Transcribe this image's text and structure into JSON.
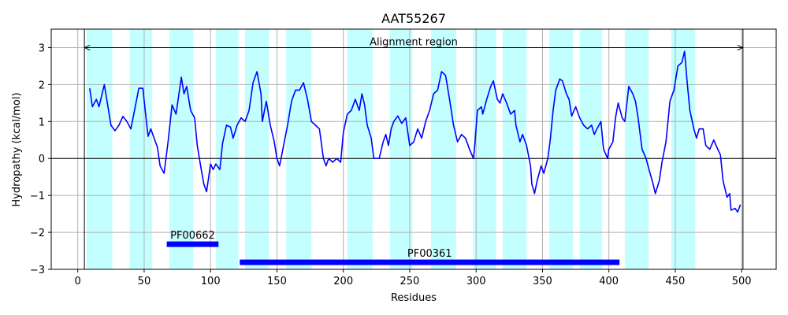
{
  "chart_data": {
    "type": "line",
    "title": "AAT55267",
    "x_label": "Residues",
    "y_label": "Hydropathy (kcal/mol)",
    "x": [
      9,
      11,
      14,
      16,
      20,
      25,
      28,
      31,
      34,
      37,
      40,
      46,
      49,
      52,
      53,
      55,
      58,
      60,
      62,
      65,
      68,
      71,
      74,
      78,
      80,
      82,
      85,
      88,
      90,
      93,
      95,
      97,
      100,
      102,
      104,
      107,
      109,
      112,
      115,
      117,
      120,
      123,
      126,
      129,
      132,
      135,
      138,
      139,
      142,
      145,
      148,
      150,
      152,
      155,
      158,
      161,
      164,
      167,
      170,
      173,
      176,
      179,
      182,
      185,
      187,
      189,
      192,
      195,
      198,
      200,
      203,
      206,
      209,
      212,
      214,
      216,
      218,
      221,
      223,
      225,
      227,
      230,
      232,
      234,
      236,
      238,
      241,
      244,
      247,
      250,
      253,
      256,
      259,
      262,
      265,
      268,
      271,
      274,
      277,
      280,
      283,
      286,
      289,
      292,
      295,
      298,
      299,
      301,
      304,
      305,
      308,
      311,
      313,
      316,
      318,
      320,
      323,
      326,
      329,
      330,
      333,
      335,
      338,
      341,
      342,
      344,
      346,
      349,
      351,
      354,
      356,
      358,
      360,
      363,
      365,
      368,
      370,
      372,
      375,
      378,
      381,
      384,
      387,
      389,
      391,
      394,
      396,
      399,
      400,
      403,
      405,
      407,
      410,
      412,
      415,
      418,
      420,
      422,
      425,
      428,
      431,
      433,
      435,
      438,
      440,
      443,
      446,
      449,
      452,
      455,
      457,
      459,
      461,
      464,
      466,
      468,
      471,
      473,
      476,
      479,
      482,
      484,
      486,
      489,
      491,
      492,
      495,
      497,
      499
    ],
    "values": [
      1.9,
      1.4,
      1.6,
      1.4,
      2.0,
      0.9,
      0.75,
      0.9,
      1.14,
      1.0,
      0.8,
      1.9,
      1.9,
      0.9,
      0.6,
      0.8,
      0.5,
      0.3,
      -0.2,
      -0.4,
      0.45,
      1.45,
      1.2,
      2.2,
      1.75,
      1.95,
      1.3,
      1.1,
      0.35,
      -0.3,
      -0.7,
      -0.9,
      -0.15,
      -0.3,
      -0.15,
      -0.3,
      0.4,
      0.9,
      0.85,
      0.55,
      0.9,
      1.1,
      1.0,
      1.3,
      2.05,
      2.35,
      1.75,
      1.0,
      1.55,
      0.9,
      0.45,
      0.0,
      -0.2,
      0.35,
      0.9,
      1.55,
      1.85,
      1.85,
      2.05,
      1.6,
      1.0,
      0.9,
      0.8,
      0.0,
      -0.2,
      0.0,
      -0.1,
      0.0,
      -0.1,
      0.7,
      1.2,
      1.3,
      1.6,
      1.3,
      1.75,
      1.45,
      0.9,
      0.55,
      0.0,
      0.0,
      0.0,
      0.45,
      0.65,
      0.35,
      0.8,
      1.0,
      1.15,
      0.95,
      1.1,
      0.35,
      0.45,
      0.8,
      0.55,
      1.0,
      1.3,
      1.75,
      1.85,
      2.35,
      2.25,
      1.6,
      0.9,
      0.45,
      0.65,
      0.55,
      0.25,
      0.0,
      0.35,
      1.3,
      1.4,
      1.2,
      1.6,
      1.95,
      2.1,
      1.6,
      1.5,
      1.75,
      1.5,
      1.2,
      1.3,
      0.9,
      0.45,
      0.65,
      0.35,
      -0.2,
      -0.7,
      -0.95,
      -0.6,
      -0.2,
      -0.4,
      0.0,
      0.55,
      1.3,
      1.85,
      2.15,
      2.1,
      1.75,
      1.6,
      1.15,
      1.4,
      1.1,
      0.9,
      0.8,
      0.9,
      0.65,
      0.8,
      1.0,
      0.25,
      0.0,
      0.25,
      0.45,
      1.1,
      1.5,
      1.1,
      1.0,
      1.95,
      1.75,
      1.55,
      1.1,
      0.25,
      0.0,
      -0.4,
      -0.65,
      -0.95,
      -0.6,
      -0.1,
      0.45,
      1.55,
      1.85,
      2.5,
      2.6,
      2.9,
      2.05,
      1.3,
      0.8,
      0.55,
      0.8,
      0.8,
      0.35,
      0.25,
      0.5,
      0.25,
      0.1,
      -0.6,
      -1.05,
      -0.95,
      -1.4,
      -1.35,
      -1.45,
      -1.25
    ],
    "color": "#0000ff",
    "xlim": [
      -20,
      526
    ],
    "ylim": [
      -3,
      3.5
    ],
    "xticks": [
      0,
      50,
      100,
      150,
      200,
      250,
      300,
      350,
      400,
      450,
      500
    ],
    "yticks": [
      {
        "value": -3,
        "label": "−3"
      },
      {
        "value": -2,
        "label": "−2"
      },
      {
        "value": -1,
        "label": "−1"
      },
      0,
      1,
      2,
      3
    ],
    "grid": true,
    "zero_line": true,
    "band_color": "#c4ffff",
    "bands": [
      [
        6.5,
        26
      ],
      [
        39,
        56
      ],
      [
        69,
        87
      ],
      [
        104,
        121
      ],
      [
        126,
        144
      ],
      [
        157,
        176
      ],
      [
        203,
        222
      ],
      [
        235,
        252
      ],
      [
        266,
        285
      ],
      [
        298,
        315
      ],
      [
        320,
        338
      ],
      [
        355,
        373
      ],
      [
        378,
        395
      ],
      [
        412,
        430
      ],
      [
        447,
        465
      ]
    ],
    "domains": [
      {
        "name": "PF00662",
        "start": 67,
        "end": 106,
        "y": -2.32,
        "color": "#0000ff"
      },
      {
        "name": "PF00361",
        "start": 122,
        "end": 408,
        "y": -2.81,
        "color": "#0000ff"
      }
    ],
    "alignment_region": {
      "label": "Alignment region",
      "start": 5,
      "end": 501,
      "y": 3
    }
  }
}
